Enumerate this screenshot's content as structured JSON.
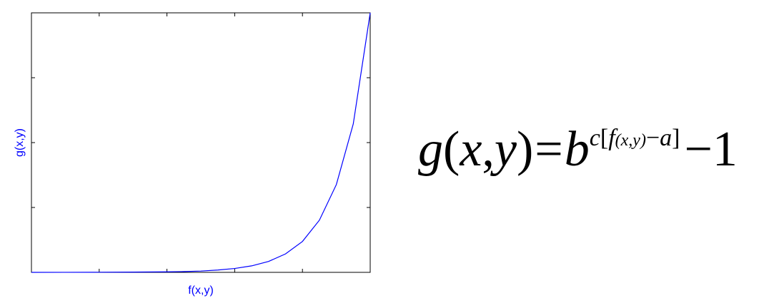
{
  "chart_data": {
    "type": "line",
    "xlabel": "f(x,y)",
    "ylabel": "g(x,y)",
    "x_ticks_labeled": false,
    "y_ticks_labeled": false,
    "xlim": [
      0,
      1
    ],
    "ylim": [
      0,
      1
    ],
    "grid": false,
    "series": [
      {
        "color": "#0000ff",
        "x": [
          0,
          0.1,
          0.2,
          0.3,
          0.4,
          0.45,
          0.5,
          0.55,
          0.6,
          0.65,
          0.7,
          0.75,
          0.8,
          0.85,
          0.9,
          0.95,
          1.0
        ],
        "y": [
          0,
          0.0002,
          0.0005,
          0.001,
          0.002,
          0.003,
          0.005,
          0.009,
          0.015,
          0.025,
          0.042,
          0.071,
          0.119,
          0.201,
          0.338,
          0.572,
          1.0
        ]
      }
    ]
  },
  "equation": {
    "lhs_func": "g",
    "lhs_open": "(",
    "lhs_x": "x",
    "lhs_comma": ",",
    "lhs_y": "y",
    "lhs_close": ")",
    "equals": "=",
    "base": "b",
    "exp_c": "c",
    "exp_open_bracket": "[",
    "exp_f": "f",
    "exp_args": "(x,y)",
    "exp_minus": "−",
    "exp_a": "a",
    "exp_close_bracket": "]",
    "tail": "−1"
  },
  "colors": {
    "line": "#0000ff",
    "axes": "#000000",
    "labels": "#0000ff"
  }
}
